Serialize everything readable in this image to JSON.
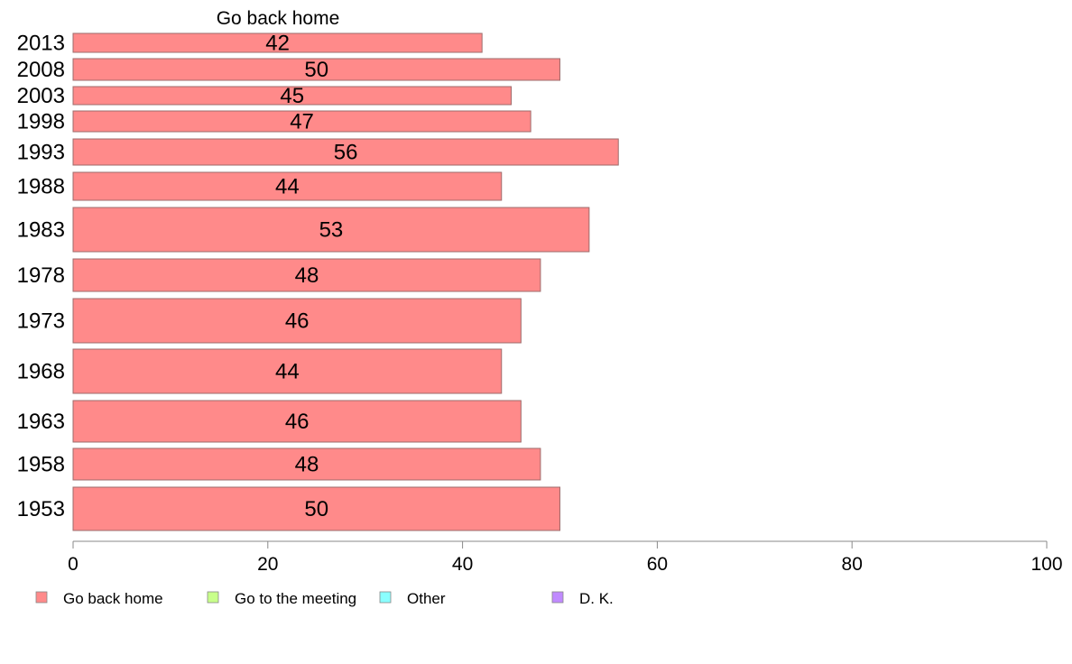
{
  "chart_data": {
    "type": "bar",
    "orientation": "horizontal",
    "title": "Go back home",
    "categories": [
      "2013",
      "2008",
      "2003",
      "1998",
      "1993",
      "1988",
      "1983",
      "1978",
      "1973",
      "1968",
      "1963",
      "1958",
      "1953"
    ],
    "series": [
      {
        "name": "Go back home",
        "values": [
          42,
          50,
          45,
          47,
          56,
          44,
          53,
          48,
          46,
          44,
          46,
          48,
          50
        ]
      }
    ],
    "xlim": [
      0,
      100
    ],
    "xticks": [
      0,
      20,
      40,
      60,
      80,
      100
    ],
    "grid": false,
    "legend": {
      "placement": "bottom",
      "entries": [
        "Go back home",
        "Go to the meeting",
        "Other",
        "D. K."
      ]
    },
    "colors": {
      "Go back home": "#ff8a8a",
      "Go to the meeting": "#c8ff8a",
      "Other": "#8affff",
      "D. K.": "#c08aff",
      "bar_stroke": "#9e6b6b",
      "axis": "#888888"
    }
  }
}
